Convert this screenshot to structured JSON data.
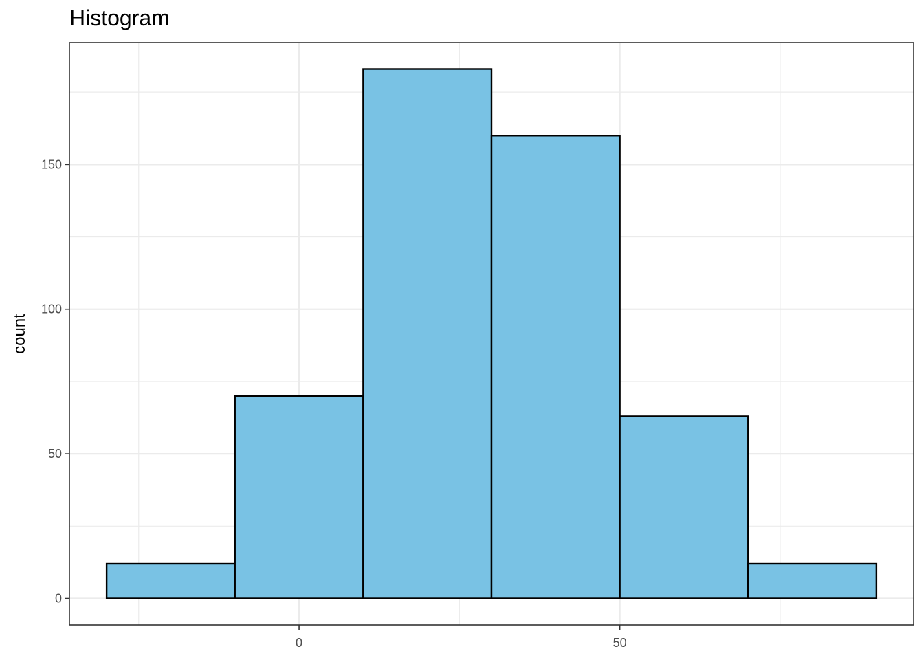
{
  "chart_data": {
    "type": "bar",
    "title": "Histogram",
    "xlabel": "",
    "ylabel": "count",
    "bins": [
      {
        "x0": -30,
        "x1": -10,
        "count": 12
      },
      {
        "x0": -10,
        "x1": 10,
        "count": 70
      },
      {
        "x0": 10,
        "x1": 30,
        "count": 183
      },
      {
        "x0": 30,
        "x1": 50,
        "count": 160
      },
      {
        "x0": 50,
        "x1": 70,
        "count": 63
      },
      {
        "x0": 70,
        "x1": 90,
        "count": 12
      }
    ],
    "xlim": [
      -35.8,
      95.8
    ],
    "ylim": [
      -9.15,
      192.15
    ],
    "x_ticks": [
      0,
      50
    ],
    "x_minor_ticks": [
      -25,
      25,
      75
    ],
    "y_ticks": [
      0,
      50,
      100,
      150
    ],
    "y_minor_ticks": [
      25,
      75,
      125,
      175
    ],
    "bar_fill": "#79c2e4",
    "bar_stroke": "#000000",
    "grid": true,
    "grid_color": "#ebebeb",
    "panel_border_color": "#333333"
  }
}
